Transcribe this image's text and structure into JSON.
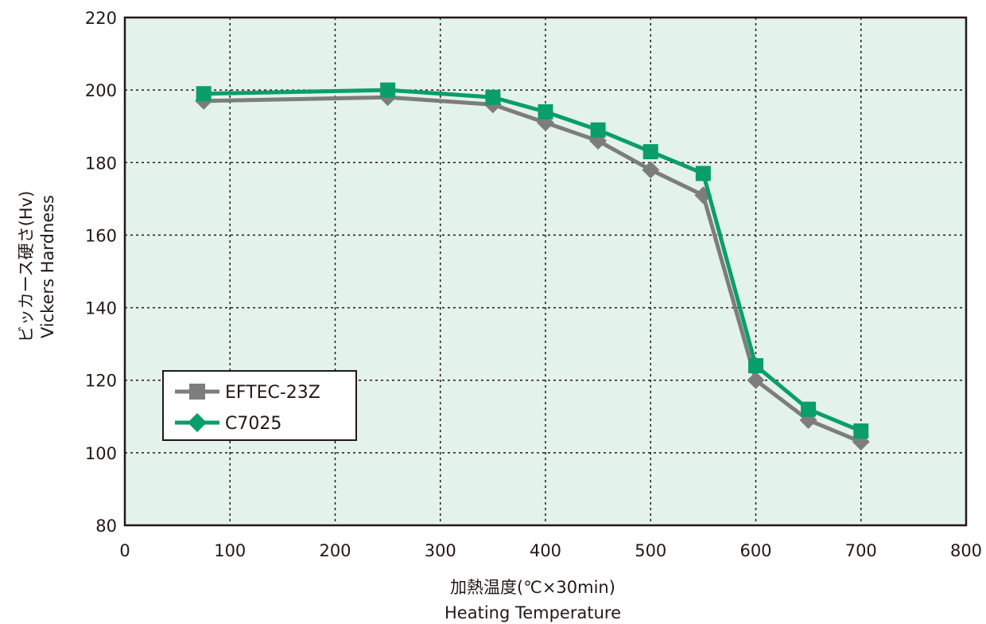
{
  "chart_data": {
    "type": "line",
    "xlabel_jp": "加熱温度(℃×30min)",
    "xlabel_en": "Heating Temperature",
    "ylabel_jp": "ビッカース硬さ(Hv)",
    "ylabel_en": "Vickers Hardness",
    "xlim": [
      0,
      800
    ],
    "ylim": [
      80,
      220
    ],
    "xticks": [
      "0",
      "100",
      "200",
      "300",
      "400",
      "500",
      "600",
      "700",
      "800"
    ],
    "yticks": [
      "80",
      "100",
      "120",
      "140",
      "160",
      "180",
      "200",
      "220"
    ],
    "grid": true,
    "legend_position": "lower-left",
    "colors": {
      "plot_background": "#e3f2ea",
      "grid": "#231815",
      "axis": "#231815"
    },
    "series": [
      {
        "name": "EFTEC-23Z",
        "color": "#7d7d7d",
        "marker": "diamond",
        "legend_marker": "square",
        "x": [
          75,
          250,
          350,
          400,
          450,
          500,
          550,
          600,
          650,
          700
        ],
        "y": [
          197,
          198,
          196,
          191,
          186,
          178,
          171,
          120,
          109,
          103
        ]
      },
      {
        "name": "C7025",
        "color": "#0a9e6a",
        "marker": "square",
        "legend_marker": "diamond",
        "x": [
          75,
          250,
          350,
          400,
          450,
          500,
          550,
          600,
          650,
          700
        ],
        "y": [
          199,
          200,
          198,
          194,
          189,
          183,
          177,
          124,
          112,
          106
        ]
      }
    ]
  }
}
